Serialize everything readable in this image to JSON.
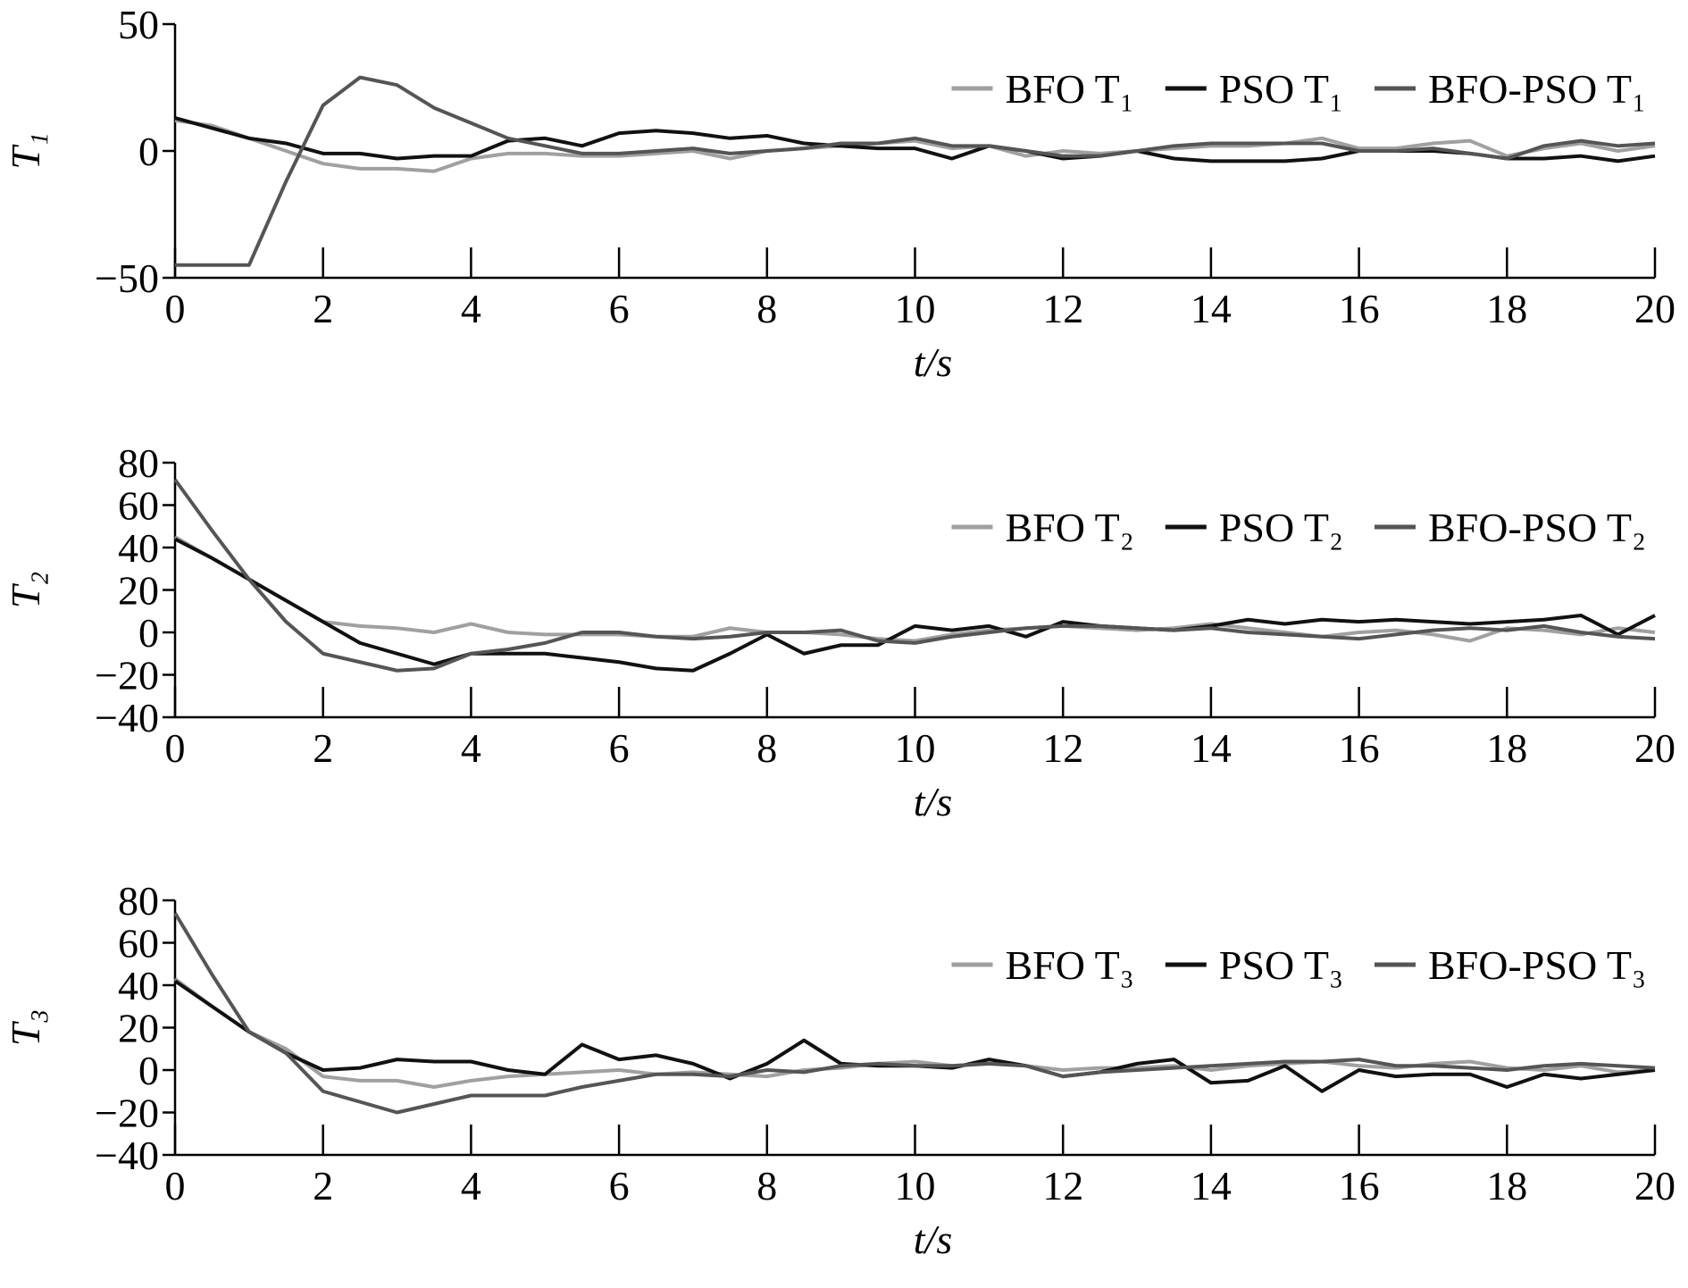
{
  "chart_data": [
    {
      "type": "line",
      "xlabel": "t/s",
      "ylabel": "T₁",
      "legend": "upper right",
      "xlim": [
        0,
        20
      ],
      "ylim": [
        -50,
        50
      ],
      "xticks": [
        0,
        2,
        4,
        6,
        8,
        10,
        12,
        14,
        16,
        18,
        20
      ],
      "yticks": [
        {
          "value": -50,
          "label": "−50"
        },
        0,
        50
      ],
      "x": [
        0,
        0.5,
        1,
        1.5,
        2,
        2.5,
        3,
        3.5,
        4,
        4.5,
        5,
        5.5,
        6,
        6.5,
        7,
        7.5,
        8,
        8.5,
        9,
        9.5,
        10,
        10.5,
        11,
        11.5,
        12,
        12.5,
        13,
        13.5,
        14,
        14.5,
        15,
        15.5,
        16,
        16.5,
        17,
        17.5,
        18,
        18.5,
        19,
        19.5,
        20
      ],
      "series": [
        {
          "name": "BFO T₁",
          "color": "#a0a0a0",
          "values": [
            12,
            10,
            5,
            0,
            -5,
            -7,
            -7,
            -8,
            -3,
            -1,
            -1,
            -2,
            -2,
            -1,
            0,
            -3,
            0,
            1,
            2,
            3,
            4,
            1,
            2,
            -2,
            0,
            -1,
            0,
            1,
            2,
            2,
            3,
            5,
            1,
            1,
            3,
            4,
            -2,
            1,
            3,
            0,
            2
          ]
        },
        {
          "name": "PSO T₁",
          "color": "#111111",
          "values": [
            13,
            9,
            5,
            3,
            -1,
            -1,
            -3,
            -2,
            -2,
            4,
            5,
            2,
            7,
            8,
            7,
            5,
            6,
            3,
            2,
            1,
            1,
            -3,
            2,
            0,
            -3,
            -2,
            0,
            -3,
            -4,
            -4,
            -4,
            -3,
            0,
            0,
            0,
            -1,
            -3,
            -3,
            -2,
            -4,
            -2
          ]
        },
        {
          "name": "BFO-PSO T₁",
          "color": "#555555",
          "values": [
            -45,
            -45,
            -45,
            -12,
            18,
            29,
            26,
            17,
            11,
            5,
            2,
            -1,
            -1,
            0,
            1,
            -1,
            0,
            1,
            3,
            3,
            5,
            2,
            2,
            0,
            -2,
            -2,
            0,
            2,
            3,
            3,
            3,
            3,
            0,
            0,
            1,
            -1,
            -3,
            2,
            4,
            2,
            3
          ]
        }
      ]
    },
    {
      "type": "line",
      "xlabel": "t/s",
      "ylabel": "T₂",
      "legend": "upper right",
      "xlim": [
        0,
        20
      ],
      "ylim": [
        -40,
        80
      ],
      "xticks": [
        0,
        2,
        4,
        6,
        8,
        10,
        12,
        14,
        16,
        18,
        20
      ],
      "yticks": [
        {
          "value": -40,
          "label": "−40"
        },
        {
          "value": -20,
          "label": "−20"
        },
        0,
        20,
        40,
        60,
        80
      ],
      "x": [
        0,
        0.5,
        1,
        1.5,
        2,
        2.5,
        3,
        3.5,
        4,
        4.5,
        5,
        5.5,
        6,
        6.5,
        7,
        7.5,
        8,
        8.5,
        9,
        9.5,
        10,
        10.5,
        11,
        11.5,
        12,
        12.5,
        13,
        13.5,
        14,
        14.5,
        15,
        15.5,
        16,
        16.5,
        17,
        17.5,
        18,
        18.5,
        19,
        19.5,
        20
      ],
      "series": [
        {
          "name": "BFO T₂",
          "color": "#a0a0a0",
          "values": [
            45,
            35,
            25,
            15,
            5,
            3,
            2,
            0,
            4,
            0,
            -1,
            -1,
            -1,
            -2,
            -2,
            2,
            0,
            0,
            -1,
            -3,
            -4,
            -1,
            1,
            2,
            3,
            2,
            1,
            2,
            4,
            2,
            0,
            -2,
            0,
            1,
            -1,
            -4,
            2,
            1,
            -1,
            2,
            0
          ]
        },
        {
          "name": "PSO T₂",
          "color": "#111111",
          "values": [
            44,
            35,
            25,
            15,
            5,
            -5,
            -10,
            -15,
            -10,
            -10,
            -10,
            -12,
            -14,
            -17,
            -18,
            -10,
            -1,
            -10,
            -6,
            -6,
            3,
            1,
            3,
            -2,
            5,
            3,
            2,
            1,
            3,
            6,
            4,
            6,
            5,
            6,
            5,
            4,
            5,
            6,
            8,
            -1,
            8
          ]
        },
        {
          "name": "BFO-PSO T₂",
          "color": "#555555",
          "values": [
            72,
            48,
            25,
            5,
            -10,
            -14,
            -18,
            -17,
            -10,
            -8,
            -5,
            0,
            0,
            -2,
            -3,
            -2,
            0,
            0,
            1,
            -4,
            -5,
            -2,
            0,
            2,
            3,
            3,
            2,
            1,
            2,
            0,
            -1,
            -2,
            -3,
            -1,
            1,
            2,
            1,
            3,
            0,
            -2,
            -3
          ]
        }
      ]
    },
    {
      "type": "line",
      "xlabel": "t/s",
      "ylabel": "T₃",
      "legend": "upper right",
      "xlim": [
        0,
        20
      ],
      "ylim": [
        -40,
        80
      ],
      "xticks": [
        0,
        2,
        4,
        6,
        8,
        10,
        12,
        14,
        16,
        18,
        20
      ],
      "yticks": [
        {
          "value": -40,
          "label": "−40"
        },
        {
          "value": -20,
          "label": "−20"
        },
        0,
        20,
        40,
        60,
        80
      ],
      "x": [
        0,
        0.5,
        1,
        1.5,
        2,
        2.5,
        3,
        3.5,
        4,
        4.5,
        5,
        5.5,
        6,
        6.5,
        7,
        7.5,
        8,
        8.5,
        9,
        9.5,
        10,
        10.5,
        11,
        11.5,
        12,
        12.5,
        13,
        13.5,
        14,
        14.5,
        15,
        15.5,
        16,
        16.5,
        17,
        17.5,
        18,
        18.5,
        19,
        19.5,
        20
      ],
      "series": [
        {
          "name": "BFO T₃",
          "color": "#a0a0a0",
          "values": [
            43,
            30,
            18,
            10,
            -3,
            -5,
            -5,
            -8,
            -5,
            -3,
            -2,
            -1,
            0,
            -2,
            -1,
            -2,
            -3,
            0,
            1,
            3,
            4,
            2,
            3,
            2,
            0,
            1,
            1,
            2,
            0,
            2,
            3,
            4,
            2,
            1,
            3,
            4,
            1,
            0,
            2,
            -1,
            0
          ]
        },
        {
          "name": "PSO T₃",
          "color": "#111111",
          "values": [
            42,
            30,
            18,
            8,
            0,
            1,
            5,
            4,
            4,
            0,
            -2,
            12,
            5,
            7,
            3,
            -4,
            3,
            14,
            3,
            2,
            2,
            1,
            5,
            2,
            -3,
            -1,
            3,
            5,
            -6,
            -5,
            2,
            -10,
            0,
            -3,
            -2,
            -2,
            -8,
            -2,
            -4,
            -2,
            0
          ]
        },
        {
          "name": "BFO-PSO T₃",
          "color": "#555555",
          "values": [
            74,
            45,
            18,
            8,
            -10,
            -15,
            -20,
            -16,
            -12,
            -12,
            -12,
            -8,
            -5,
            -2,
            -2,
            -3,
            0,
            -1,
            2,
            3,
            2,
            2,
            3,
            2,
            -3,
            -1,
            0,
            1,
            2,
            3,
            4,
            4,
            5,
            2,
            2,
            1,
            0,
            2,
            3,
            2,
            1
          ]
        }
      ]
    }
  ]
}
